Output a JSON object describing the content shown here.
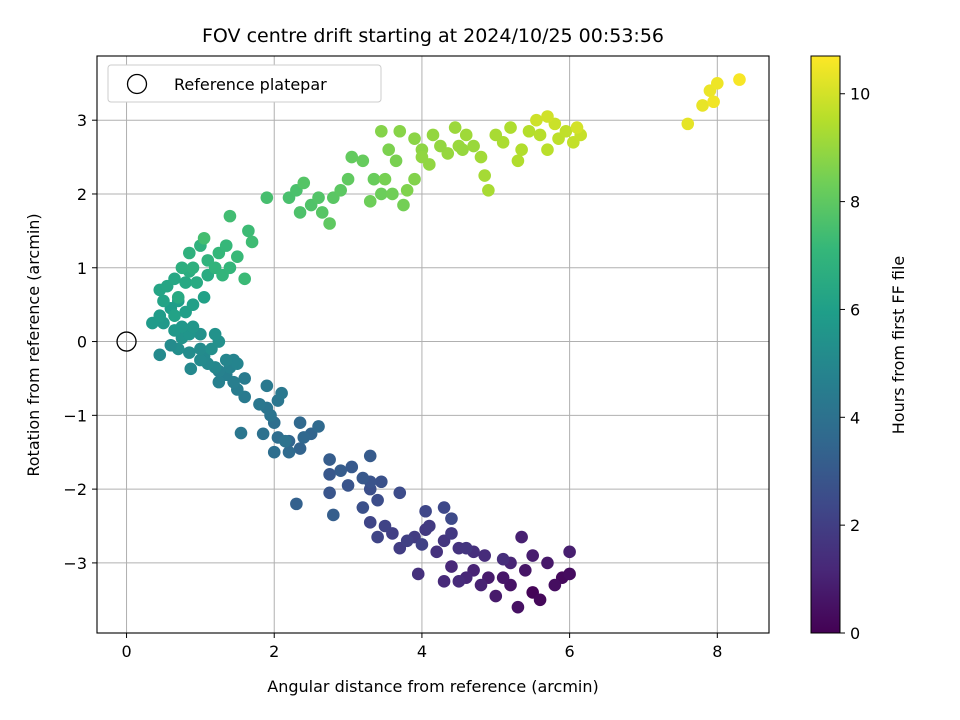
{
  "chart_data": {
    "type": "scatter",
    "title": "FOV centre drift starting at 2024/10/25 00:53:56",
    "xlabel": "Angular distance from reference (arcmin)",
    "ylabel": "Rotation from reference (arcmin)",
    "xlim": [
      -0.4,
      8.7
    ],
    "ylim": [
      -3.95,
      3.87
    ],
    "x_ticks": [
      0,
      2,
      4,
      6,
      8
    ],
    "y_ticks": [
      -3,
      -2,
      -1,
      0,
      1,
      2,
      3
    ],
    "x_tick_labels": [
      "0",
      "2",
      "4",
      "6",
      "8"
    ],
    "y_tick_labels": [
      "−3",
      "−2",
      "−1",
      "0",
      "1",
      "2",
      "3"
    ],
    "grid": true,
    "legend": {
      "placement": "upper-left",
      "entries": [
        {
          "label": "Reference platepar",
          "marker": "open-circle"
        }
      ]
    },
    "reference_point": {
      "label": "Reference platepar",
      "x": 0,
      "y": 0
    },
    "colorbar": {
      "label": "Hours from first FF file",
      "colormap": "viridis",
      "range": [
        0,
        10.7
      ],
      "ticks": [
        0,
        2,
        4,
        6,
        8,
        10
      ],
      "tick_labels": [
        "0",
        "2",
        "4",
        "6",
        "8",
        "10"
      ]
    },
    "colormap_stops": [
      "#440154",
      "#482878",
      "#3e4989",
      "#31688e",
      "#26828e",
      "#1f9e89",
      "#35b779",
      "#6ece58",
      "#b5de2b",
      "#fde725"
    ],
    "series": [
      {
        "color_by": "hours",
        "points": [
          [
            5.5,
            -3.4,
            0.1
          ],
          [
            5.6,
            -3.5,
            0.2
          ],
          [
            5.9,
            -3.2,
            0.25
          ],
          [
            6.0,
            -3.15,
            0.35
          ],
          [
            5.8,
            -3.3,
            0.4
          ],
          [
            5.3,
            -3.6,
            0.5
          ],
          [
            5.2,
            -3.3,
            0.55
          ],
          [
            5.4,
            -3.1,
            0.6
          ],
          [
            5.1,
            -3.2,
            0.65
          ],
          [
            5.7,
            -3.0,
            0.7
          ],
          [
            5.0,
            -3.45,
            0.75
          ],
          [
            4.9,
            -3.2,
            0.8
          ],
          [
            5.5,
            -2.9,
            0.85
          ],
          [
            6.0,
            -2.85,
            0.9
          ],
          [
            5.35,
            -2.65,
            0.95
          ],
          [
            4.8,
            -3.3,
            1.0
          ],
          [
            4.7,
            -3.1,
            1.05
          ],
          [
            5.2,
            -3.0,
            1.1
          ],
          [
            4.6,
            -3.2,
            1.15
          ],
          [
            4.4,
            -3.05,
            1.2
          ],
          [
            4.3,
            -3.25,
            1.25
          ],
          [
            4.5,
            -3.25,
            1.3
          ],
          [
            4.85,
            -2.9,
            1.35
          ],
          [
            5.1,
            -2.95,
            1.4
          ],
          [
            4.7,
            -2.85,
            1.45
          ],
          [
            3.95,
            -3.15,
            1.5
          ],
          [
            4.2,
            -2.85,
            1.55
          ],
          [
            4.5,
            -2.8,
            1.6
          ],
          [
            4.6,
            -2.8,
            1.65
          ],
          [
            4.3,
            -2.7,
            1.7
          ],
          [
            4.05,
            -2.55,
            1.75
          ],
          [
            4.4,
            -2.6,
            1.8
          ],
          [
            4.1,
            -2.5,
            1.85
          ],
          [
            3.9,
            -2.65,
            1.9
          ],
          [
            3.7,
            -2.8,
            1.95
          ],
          [
            3.6,
            -2.6,
            2.0
          ],
          [
            3.8,
            -2.7,
            2.05
          ],
          [
            4.0,
            -2.75,
            2.1
          ],
          [
            3.5,
            -2.5,
            2.15
          ],
          [
            3.4,
            -2.65,
            2.2
          ],
          [
            3.3,
            -2.45,
            2.25
          ],
          [
            4.05,
            -2.3,
            2.3
          ],
          [
            4.3,
            -2.25,
            2.35
          ],
          [
            4.4,
            -2.4,
            2.4
          ],
          [
            3.7,
            -2.05,
            2.5
          ],
          [
            3.4,
            -2.15,
            2.55
          ],
          [
            3.3,
            -2.0,
            2.6
          ],
          [
            3.2,
            -2.25,
            2.65
          ],
          [
            3.45,
            -1.9,
            2.7
          ],
          [
            3.3,
            -1.9,
            2.75
          ],
          [
            3.0,
            -1.95,
            2.8
          ],
          [
            2.75,
            -2.05,
            2.85
          ],
          [
            2.75,
            -1.8,
            2.9
          ],
          [
            3.2,
            -1.85,
            2.95
          ],
          [
            3.05,
            -1.7,
            3.0
          ],
          [
            3.3,
            -1.55,
            3.05
          ],
          [
            2.9,
            -1.75,
            3.1
          ],
          [
            2.75,
            -1.6,
            3.15
          ],
          [
            2.8,
            -2.35,
            3.2
          ],
          [
            2.3,
            -2.2,
            3.3
          ],
          [
            2.35,
            -1.45,
            3.4
          ],
          [
            2.5,
            -1.25,
            3.45
          ],
          [
            2.2,
            -1.35,
            3.5
          ],
          [
            2.4,
            -1.3,
            3.55
          ],
          [
            2.35,
            -1.1,
            3.6
          ],
          [
            2.6,
            -1.15,
            3.65
          ],
          [
            2.2,
            -1.5,
            3.7
          ],
          [
            2.05,
            -1.3,
            3.8
          ],
          [
            2.0,
            -1.5,
            3.85
          ],
          [
            2.0,
            -1.1,
            3.9
          ],
          [
            1.85,
            -1.25,
            4.0
          ],
          [
            2.15,
            -1.35,
            4.05
          ],
          [
            1.95,
            -1.0,
            4.1
          ],
          [
            1.9,
            -0.9,
            4.15
          ],
          [
            2.05,
            -0.8,
            4.2
          ],
          [
            1.8,
            -0.85,
            4.25
          ],
          [
            2.1,
            -0.7,
            4.3
          ],
          [
            1.9,
            -0.6,
            4.35
          ],
          [
            1.6,
            -0.75,
            4.4
          ],
          [
            1.6,
            -0.5,
            4.45
          ],
          [
            1.5,
            -0.65,
            4.5
          ],
          [
            1.45,
            -0.55,
            4.55
          ],
          [
            1.35,
            -0.45,
            4.6
          ],
          [
            1.25,
            -0.55,
            4.65
          ],
          [
            1.25,
            -0.4,
            4.7
          ],
          [
            1.4,
            -0.35,
            4.75
          ],
          [
            1.45,
            -0.25,
            4.8
          ],
          [
            1.5,
            -0.3,
            4.85
          ],
          [
            1.35,
            -0.25,
            4.9
          ],
          [
            1.2,
            -0.35,
            4.95
          ],
          [
            1.1,
            -0.3,
            5.0
          ],
          [
            1.05,
            -0.2,
            5.05
          ],
          [
            1.0,
            -0.25,
            5.1
          ],
          [
            1.0,
            -0.1,
            5.15
          ],
          [
            0.85,
            -0.15,
            5.2
          ],
          [
            0.7,
            -0.1,
            5.25
          ],
          [
            1.15,
            -0.1,
            5.3
          ],
          [
            1.25,
            0.0,
            5.35
          ],
          [
            1.0,
            0.1,
            5.4
          ],
          [
            1.2,
            0.1,
            5.45
          ],
          [
            0.75,
            0.05,
            5.5
          ],
          [
            0.85,
            0.1,
            5.55
          ],
          [
            0.9,
            0.2,
            5.6
          ],
          [
            0.75,
            0.2,
            5.65
          ],
          [
            0.65,
            0.15,
            5.7
          ],
          [
            0.5,
            0.25,
            5.75
          ],
          [
            0.35,
            0.25,
            5.8
          ],
          [
            0.45,
            0.35,
            5.85
          ],
          [
            0.6,
            0.45,
            5.9
          ],
          [
            0.7,
            0.55,
            5.95
          ],
          [
            0.8,
            0.4,
            6.0
          ],
          [
            0.9,
            0.5,
            6.05
          ],
          [
            1.05,
            0.6,
            6.1
          ],
          [
            0.65,
            0.35,
            6.15
          ],
          [
            0.5,
            0.55,
            6.2
          ],
          [
            0.45,
            0.7,
            6.25
          ],
          [
            0.55,
            0.75,
            6.3
          ],
          [
            0.65,
            0.85,
            6.35
          ],
          [
            0.8,
            0.8,
            6.4
          ],
          [
            0.7,
            0.6,
            6.45
          ],
          [
            0.95,
            0.8,
            6.5
          ],
          [
            1.1,
            0.9,
            6.55
          ],
          [
            0.85,
            0.95,
            6.6
          ],
          [
            0.75,
            1.0,
            6.7
          ],
          [
            0.9,
            1.0,
            6.75
          ],
          [
            0.85,
            1.2,
            6.8
          ],
          [
            1.0,
            1.3,
            6.85
          ],
          [
            1.1,
            1.1,
            6.9
          ],
          [
            1.2,
            1.0,
            6.95
          ],
          [
            1.3,
            0.9,
            7.0
          ],
          [
            1.4,
            1.0,
            7.05
          ],
          [
            1.25,
            1.2,
            7.1
          ],
          [
            1.35,
            1.3,
            7.15
          ],
          [
            1.5,
            1.15,
            7.2
          ],
          [
            1.6,
            0.85,
            7.25
          ],
          [
            1.65,
            1.5,
            7.3
          ],
          [
            1.7,
            1.35,
            7.35
          ],
          [
            1.4,
            1.7,
            7.4
          ],
          [
            1.05,
            1.4,
            7.45
          ],
          [
            0.45,
            -0.18,
            5.1
          ],
          [
            0.6,
            -0.05,
            5.15
          ],
          [
            0.87,
            -0.37,
            5.0
          ],
          [
            1.55,
            -1.24,
            4.2
          ],
          [
            1.9,
            1.95,
            7.5
          ],
          [
            2.2,
            1.95,
            7.55
          ],
          [
            2.3,
            2.05,
            7.6
          ],
          [
            2.35,
            1.75,
            7.65
          ],
          [
            2.5,
            1.85,
            7.7
          ],
          [
            2.6,
            1.95,
            7.75
          ],
          [
            2.4,
            2.15,
            7.8
          ],
          [
            2.65,
            1.75,
            7.85
          ],
          [
            2.8,
            1.95,
            7.9
          ],
          [
            2.9,
            2.05,
            7.95
          ],
          [
            2.75,
            1.6,
            8.0
          ],
          [
            3.0,
            2.2,
            8.05
          ],
          [
            3.05,
            2.5,
            8.1
          ],
          [
            3.2,
            2.45,
            8.15
          ],
          [
            3.35,
            2.2,
            8.2
          ],
          [
            3.45,
            2.0,
            8.25
          ],
          [
            3.3,
            1.9,
            8.3
          ],
          [
            3.6,
            2.0,
            8.35
          ],
          [
            3.75,
            1.85,
            8.4
          ],
          [
            3.5,
            2.2,
            8.45
          ],
          [
            3.65,
            2.45,
            8.5
          ],
          [
            3.55,
            2.6,
            8.55
          ],
          [
            3.8,
            2.05,
            8.6
          ],
          [
            3.9,
            2.2,
            8.65
          ],
          [
            3.45,
            2.85,
            8.7
          ],
          [
            3.7,
            2.85,
            8.75
          ],
          [
            3.9,
            2.75,
            8.8
          ],
          [
            4.0,
            2.6,
            8.85
          ],
          [
            4.1,
            2.4,
            8.9
          ],
          [
            4.15,
            2.8,
            8.95
          ],
          [
            4.35,
            2.55,
            9.0
          ],
          [
            4.5,
            2.65,
            9.05
          ],
          [
            4.45,
            2.9,
            9.1
          ],
          [
            4.6,
            2.8,
            9.15
          ],
          [
            4.8,
            2.5,
            9.2
          ],
          [
            4.85,
            2.25,
            9.25
          ],
          [
            4.9,
            2.05,
            9.3
          ],
          [
            5.1,
            2.7,
            9.35
          ],
          [
            5.2,
            2.9,
            9.4
          ],
          [
            5.35,
            2.6,
            9.45
          ],
          [
            5.45,
            2.85,
            9.5
          ],
          [
            5.6,
            2.8,
            9.55
          ],
          [
            5.7,
            2.6,
            9.6
          ],
          [
            5.85,
            2.75,
            9.65
          ],
          [
            5.95,
            2.85,
            9.7
          ],
          [
            6.05,
            2.7,
            9.75
          ],
          [
            6.15,
            2.8,
            9.8
          ],
          [
            5.8,
            2.95,
            9.85
          ],
          [
            5.55,
            3.0,
            9.9
          ],
          [
            5.7,
            3.05,
            9.95
          ],
          [
            6.1,
            2.9,
            10.0
          ],
          [
            4.0,
            2.5,
            8.9
          ],
          [
            4.25,
            2.65,
            8.95
          ],
          [
            4.55,
            2.6,
            9.0
          ],
          [
            4.7,
            2.65,
            9.05
          ],
          [
            5.0,
            2.8,
            9.3
          ],
          [
            5.3,
            2.45,
            9.45
          ],
          [
            7.6,
            2.95,
            10.3
          ],
          [
            7.8,
            3.2,
            10.35
          ],
          [
            7.9,
            3.4,
            10.4
          ],
          [
            8.0,
            3.5,
            10.45
          ],
          [
            8.3,
            3.55,
            10.6
          ],
          [
            7.95,
            3.25,
            10.5
          ]
        ]
      }
    ]
  }
}
